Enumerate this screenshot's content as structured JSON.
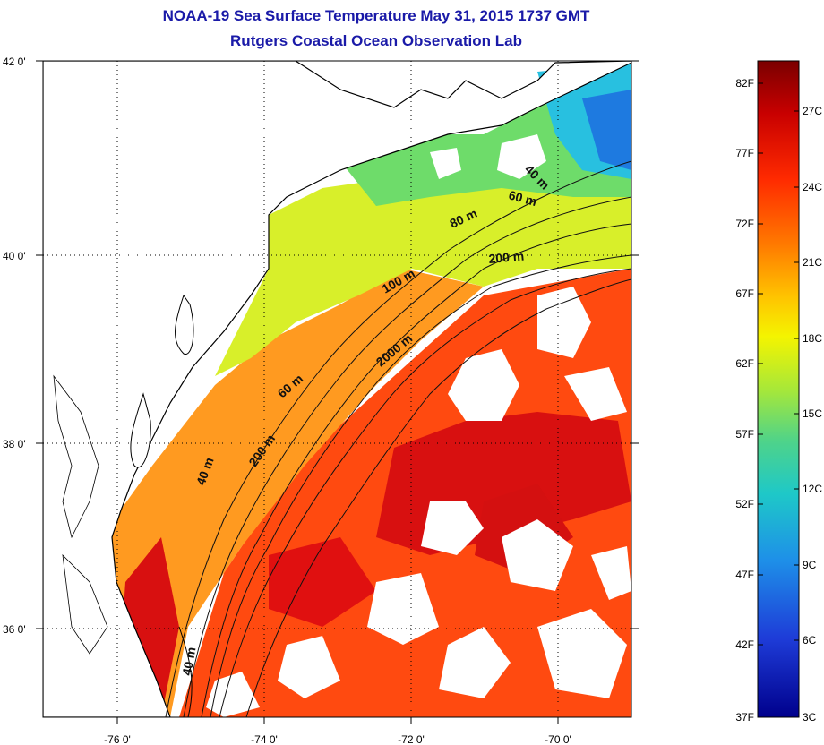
{
  "title": "NOAA-19 Sea Surface Temperature May 31, 2015 1737 GMT",
  "subtitle": "Rutgers Coastal Ocean Observation Lab",
  "lat_ticks": [
    {
      "value": 42,
      "label": "42 0'"
    },
    {
      "value": 40,
      "label": "40 0'"
    },
    {
      "value": 38,
      "label": "38 0'"
    },
    {
      "value": 36,
      "label": "36 0'"
    }
  ],
  "lon_ticks": [
    {
      "value": -76,
      "label": "-76 0'"
    },
    {
      "value": -74,
      "label": "-74 0'"
    },
    {
      "value": -72,
      "label": "-72 0'"
    },
    {
      "value": -70,
      "label": "-70 0'"
    }
  ],
  "lat_range": [
    35.0,
    42.0
  ],
  "lon_range": [
    -77.0,
    -69.0
  ],
  "grid": true,
  "contour_labels": [
    "40 m",
    "60 m",
    "80 m",
    "200 m",
    "100 m",
    "2000 m",
    "60 m",
    "200 m",
    "40 m",
    "40 m"
  ],
  "colorbar": {
    "f_labels": [
      "82F",
      "77F",
      "72F",
      "67F",
      "62F",
      "57F",
      "52F",
      "47F",
      "42F",
      "37F"
    ],
    "c_labels": [
      "27C",
      "24C",
      "21C",
      "18C",
      "15C",
      "12C",
      "9C",
      "6C",
      "3C"
    ],
    "colors": [
      "#7a0000",
      "#c80000",
      "#ff2a00",
      "#ff7a00",
      "#ffc400",
      "#f4f400",
      "#a8e838",
      "#4ed38a",
      "#1ec8c8",
      "#1e90e8",
      "#1e3cd8",
      "#00008c"
    ]
  },
  "colors": {
    "title": "#1a1aa8",
    "land": "#ffffff",
    "cloud": "#ffffff"
  }
}
